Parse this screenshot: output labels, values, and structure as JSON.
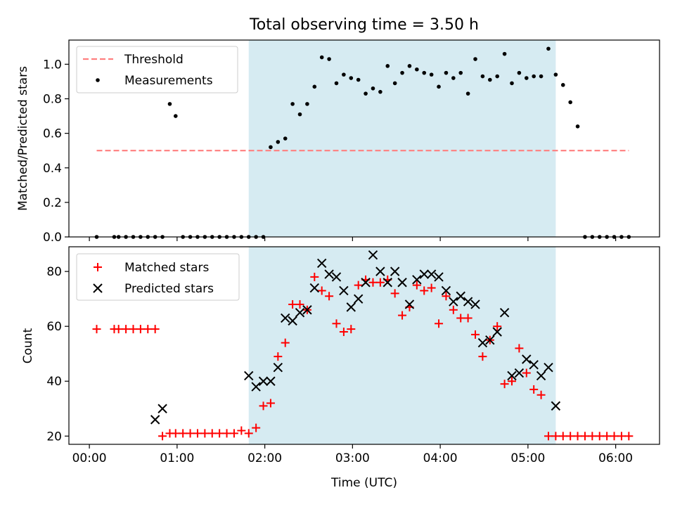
{
  "title": "Total observing time = 3.50 h",
  "chart_data": [
    {
      "type": "scatter",
      "panel": "top",
      "ylabel": "Matched/Predicted stars",
      "xlabel": "",
      "xlim_minutes": [
        -14,
        390
      ],
      "ylim": [
        0,
        1.14
      ],
      "yticks": [
        0.0,
        0.2,
        0.4,
        0.6,
        0.8,
        1.0
      ],
      "ytick_labels": [
        "0.0",
        "0.2",
        "0.4",
        "0.6",
        "0.8",
        "1.0"
      ],
      "shaded_interval": [
        "01:49",
        "05:19"
      ],
      "shaded_color": "#add8e6",
      "legend": {
        "placement": "upper-left",
        "entries": [
          "Threshold",
          "Measurements"
        ]
      },
      "series": [
        {
          "name": "Threshold",
          "style": "dashed-line",
          "color": "#ff7f7f",
          "x": [
            "00:05",
            "06:09"
          ],
          "y": [
            0.5,
            0.5
          ]
        },
        {
          "name": "Measurements",
          "style": "dot",
          "color": "#000000",
          "x": [
            "00:05",
            "00:17",
            "00:20",
            "00:25",
            "00:30",
            "00:35",
            "00:40",
            "00:45",
            "00:50",
            "00:55",
            "00:59",
            "01:04",
            "01:09",
            "01:14",
            "01:19",
            "01:24",
            "01:29",
            "01:34",
            "01:39",
            "01:44",
            "01:49",
            "01:54",
            "01:59",
            "02:04",
            "02:09",
            "02:14",
            "02:19",
            "02:24",
            "02:29",
            "02:34",
            "02:39",
            "02:44",
            "02:49",
            "02:54",
            "02:59",
            "03:04",
            "03:09",
            "03:14",
            "03:19",
            "03:24",
            "03:29",
            "03:34",
            "03:39",
            "03:44",
            "03:49",
            "03:54",
            "03:59",
            "04:04",
            "04:09",
            "04:14",
            "04:19",
            "04:24",
            "04:29",
            "04:34",
            "04:39",
            "04:44",
            "04:49",
            "04:54",
            "04:59",
            "05:04",
            "05:09",
            "05:14",
            "05:19",
            "05:24",
            "05:29",
            "05:34",
            "05:39",
            "05:44",
            "05:49",
            "05:54",
            "05:59",
            "06:04",
            "06:09"
          ],
          "y": [
            0,
            0,
            0,
            0,
            0,
            0,
            0,
            0,
            0,
            0.77,
            0.7,
            0,
            0,
            0,
            0,
            0,
            0,
            0,
            0,
            0,
            0,
            0,
            0,
            0.52,
            0.55,
            0.57,
            0.77,
            0.71,
            0.77,
            0.87,
            1.04,
            1.03,
            0.89,
            0.94,
            0.92,
            0.91,
            0.83,
            0.86,
            0.84,
            0.99,
            0.89,
            0.95,
            0.99,
            0.97,
            0.95,
            0.94,
            0.87,
            0.95,
            0.92,
            0.95,
            0.83,
            1.03,
            0.93,
            0.91,
            0.93,
            1.06,
            0.89,
            0.95,
            0.92,
            0.93,
            0.93,
            1.09,
            0.94,
            0.88,
            0.78,
            0.64,
            0,
            0,
            0,
            0,
            0,
            0,
            0
          ]
        }
      ]
    },
    {
      "type": "scatter",
      "panel": "bottom",
      "ylabel": "Count",
      "xlabel": "Time (UTC)",
      "xlim_minutes": [
        -14,
        390
      ],
      "ylim": [
        17,
        89
      ],
      "yticks": [
        20,
        40,
        60,
        80
      ],
      "ytick_labels": [
        "20",
        "40",
        "60",
        "80"
      ],
      "xtick_labels": [
        "00:00",
        "01:00",
        "02:00",
        "03:00",
        "04:00",
        "05:00",
        "06:00"
      ],
      "shaded_interval": [
        "01:49",
        "05:19"
      ],
      "shaded_color": "#add8e6",
      "legend": {
        "placement": "upper-left",
        "entries": [
          "Matched stars",
          "Predicted stars"
        ]
      },
      "series": [
        {
          "name": "Matched stars",
          "marker": "plus",
          "color": "#ff0000",
          "x": [
            "00:05",
            "00:17",
            "00:20",
            "00:25",
            "00:30",
            "00:35",
            "00:40",
            "00:45",
            "00:50",
            "00:55",
            "00:59",
            "01:04",
            "01:09",
            "01:14",
            "01:19",
            "01:24",
            "01:29",
            "01:34",
            "01:39",
            "01:44",
            "01:49",
            "01:54",
            "01:59",
            "02:04",
            "02:09",
            "02:14",
            "02:19",
            "02:24",
            "02:29",
            "02:34",
            "02:39",
            "02:44",
            "02:49",
            "02:54",
            "02:59",
            "03:04",
            "03:09",
            "03:14",
            "03:19",
            "03:24",
            "03:29",
            "03:34",
            "03:39",
            "03:44",
            "03:49",
            "03:54",
            "03:59",
            "04:04",
            "04:09",
            "04:14",
            "04:19",
            "04:24",
            "04:29",
            "04:34",
            "04:39",
            "04:44",
            "04:49",
            "04:54",
            "04:59",
            "05:04",
            "05:09",
            "05:14",
            "05:19",
            "05:24",
            "05:29",
            "05:34",
            "05:39",
            "05:44",
            "05:49",
            "05:54",
            "05:59",
            "06:04",
            "06:09"
          ],
          "y": [
            59,
            59,
            59,
            59,
            59,
            59,
            59,
            59,
            20,
            21,
            21,
            21,
            21,
            21,
            21,
            21,
            21,
            21,
            21,
            22,
            21,
            23,
            31,
            32,
            49,
            54,
            68,
            68,
            66,
            78,
            73,
            71,
            61,
            58,
            59,
            75,
            77,
            76,
            76,
            77,
            72,
            64,
            67,
            75,
            73,
            74,
            61,
            71,
            66,
            63,
            63,
            57,
            49,
            55,
            60,
            39,
            40,
            52,
            43,
            37,
            35,
            20,
            20,
            20,
            20,
            20,
            20,
            20,
            20,
            20,
            20,
            20,
            20
          ]
        },
        {
          "name": "Predicted stars",
          "marker": "x",
          "color": "#000000",
          "x": [
            "00:45",
            "00:50",
            "01:49",
            "01:54",
            "01:59",
            "02:04",
            "02:09",
            "02:14",
            "02:19",
            "02:24",
            "02:29",
            "02:34",
            "02:39",
            "02:44",
            "02:49",
            "02:54",
            "02:59",
            "03:04",
            "03:09",
            "03:14",
            "03:19",
            "03:24",
            "03:29",
            "03:34",
            "03:39",
            "03:44",
            "03:49",
            "03:54",
            "03:59",
            "04:04",
            "04:09",
            "04:14",
            "04:19",
            "04:24",
            "04:29",
            "04:34",
            "04:39",
            "04:44",
            "04:49",
            "04:54",
            "04:59",
            "05:04",
            "05:09",
            "05:14",
            "05:19"
          ],
          "y": [
            26,
            30,
            42,
            38,
            40,
            40,
            45,
            63,
            62,
            65,
            66,
            74,
            83,
            79,
            78,
            73,
            67,
            70,
            76,
            86,
            80,
            76,
            80,
            76,
            68,
            77,
            79,
            79,
            78,
            73,
            69,
            71,
            69,
            68,
            54,
            55,
            58,
            65,
            42,
            43,
            48,
            46,
            42,
            45,
            31
          ]
        }
      ]
    }
  ]
}
